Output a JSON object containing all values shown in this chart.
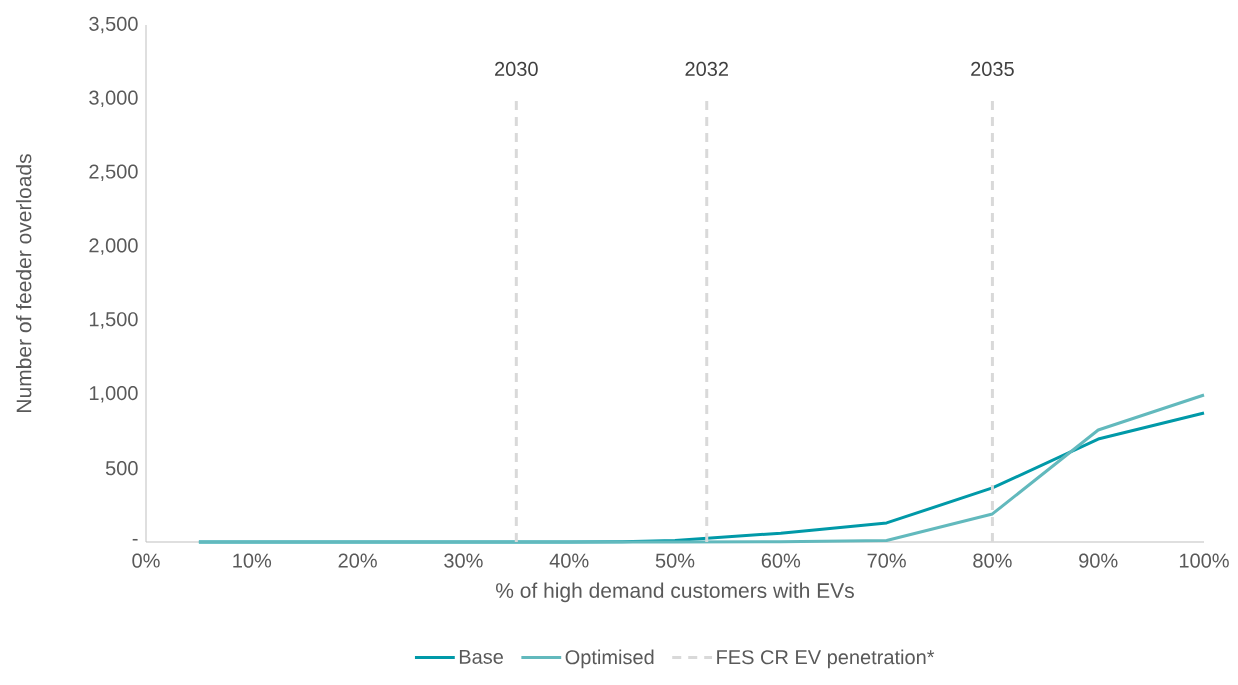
{
  "chart_data": {
    "type": "line",
    "xlabel": "% of high demand customers with EVs",
    "ylabel": "Number of feeder overloads",
    "x": [
      5,
      10,
      15,
      20,
      25,
      30,
      35,
      40,
      45,
      50,
      60,
      70,
      80,
      90,
      100
    ],
    "series": [
      {
        "name": "Base",
        "color": "#0099a8",
        "values": [
          0,
          0,
          0,
          0,
          0,
          0,
          0,
          0,
          2,
          10,
          60,
          129,
          366,
          697,
          873
        ]
      },
      {
        "name": "Optimised",
        "color": "#62b9bd",
        "values": [
          0,
          0,
          0,
          0,
          0,
          0,
          0,
          0,
          0,
          0,
          2,
          10,
          190,
          758,
          995
        ]
      }
    ],
    "xlim": [
      0,
      100
    ],
    "xticks": [
      {
        "value": 0,
        "label": "0%"
      },
      {
        "value": 10,
        "label": "10%"
      },
      {
        "value": 20,
        "label": "20%"
      },
      {
        "value": 30,
        "label": "30%"
      },
      {
        "value": 40,
        "label": "40%"
      },
      {
        "value": 50,
        "label": "50%"
      },
      {
        "value": 60,
        "label": "60%"
      },
      {
        "value": 70,
        "label": "70%"
      },
      {
        "value": 80,
        "label": "80%"
      },
      {
        "value": 90,
        "label": "90%"
      },
      {
        "value": 100,
        "label": "100%"
      }
    ],
    "ylim": [
      0,
      3500
    ],
    "yticks": [
      {
        "value": 0,
        "label": "-"
      },
      {
        "value": 500,
        "label": "500"
      },
      {
        "value": 1000,
        "label": "1,000"
      },
      {
        "value": 1500,
        "label": "1,500"
      },
      {
        "value": 2000,
        "label": "2,000"
      },
      {
        "value": 2500,
        "label": "2,500"
      },
      {
        "value": 3000,
        "label": "3,000"
      },
      {
        "value": 3500,
        "label": "3,500"
      }
    ],
    "ref_lines": [
      {
        "axis": "x",
        "value": 35,
        "color": "#d9d9d9",
        "line_style": "dashed"
      },
      {
        "axis": "x",
        "value": 53,
        "color": "#d9d9d9",
        "line_style": "dashed"
      },
      {
        "axis": "x",
        "value": 80,
        "color": "#d9d9d9",
        "line_style": "dashed"
      }
    ],
    "annotations": [
      "FES CR EV penetration*",
      "2030",
      "2032",
      "2035"
    ],
    "legend": "bottom",
    "grid": false,
    "marker": "none",
    "line_style": "solid"
  }
}
